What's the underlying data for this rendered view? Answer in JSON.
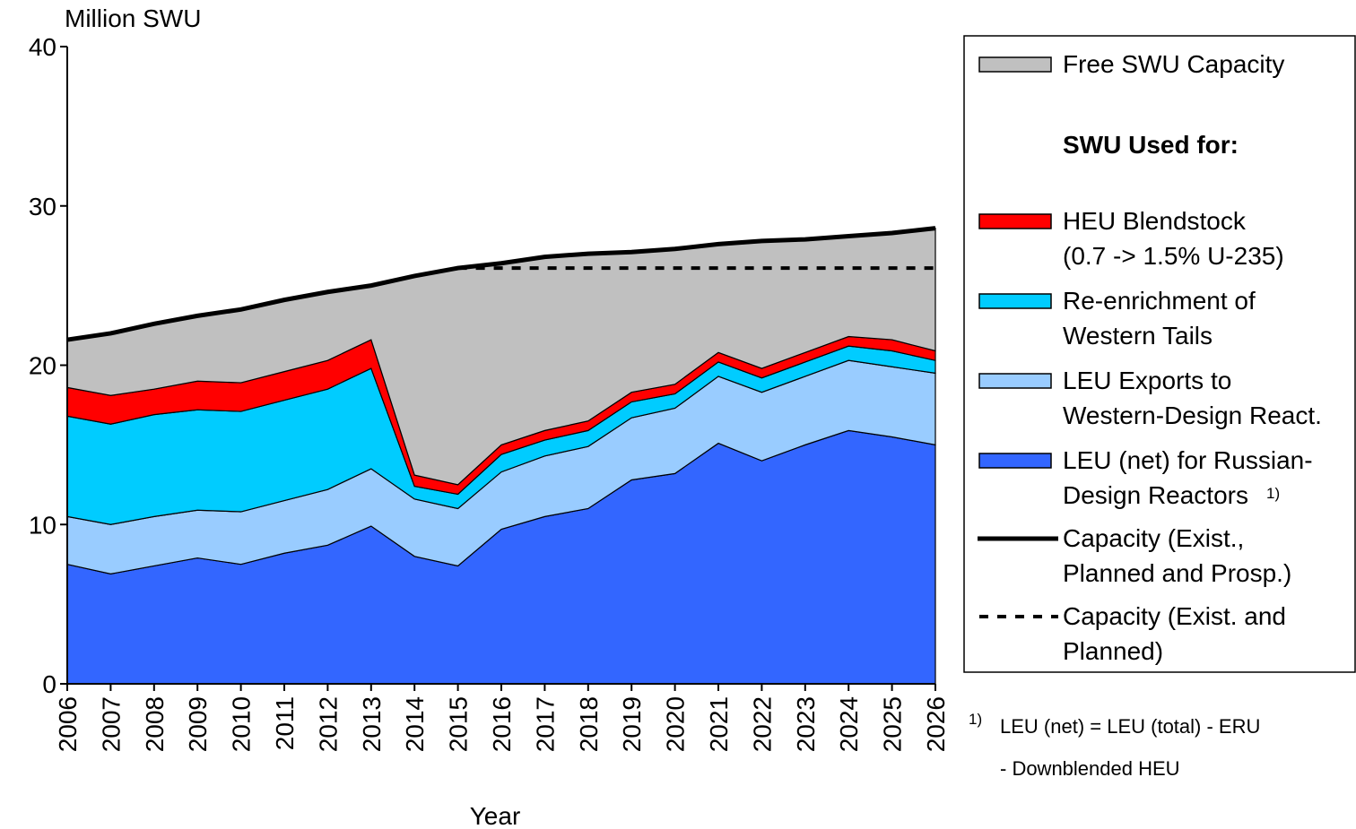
{
  "chart_data": {
    "type": "stacked_area",
    "y_axis_label": "Million SWU",
    "x_axis_label": "Year",
    "categories": [
      "2006",
      "2007",
      "2008",
      "2009",
      "2010",
      "2011",
      "2012",
      "2013",
      "2014",
      "2015",
      "2016",
      "2017",
      "2018",
      "2019",
      "2020",
      "2021",
      "2022",
      "2023",
      "2024",
      "2025",
      "2026"
    ],
    "ylim": [
      0,
      40
    ],
    "yticks": [
      0,
      10,
      20,
      30,
      40
    ],
    "grid": false,
    "series": [
      {
        "name": "LEU (net) for Russian-\nDesign Reactors",
        "color": "#3366ff",
        "values": [
          7.5,
          6.9,
          7.4,
          7.9,
          7.5,
          8.2,
          8.7,
          9.9,
          8.0,
          7.4,
          9.7,
          10.5,
          11.0,
          12.8,
          13.2,
          15.1,
          14.0,
          15.0,
          15.9,
          15.5,
          15.0
        ]
      },
      {
        "name": "LEU Exports to\nWestern-Design React.",
        "color": "#99ccff",
        "values": [
          3.0,
          3.1,
          3.1,
          3.0,
          3.3,
          3.3,
          3.5,
          3.6,
          3.6,
          3.6,
          3.6,
          3.8,
          3.9,
          3.9,
          4.1,
          4.2,
          4.3,
          4.3,
          4.4,
          4.4,
          4.5
        ]
      },
      {
        "name": "Re-enrichment of\nWestern Tails",
        "color": "#00ccff",
        "values": [
          6.3,
          6.3,
          6.4,
          6.3,
          6.3,
          6.3,
          6.3,
          6.3,
          0.8,
          0.9,
          1.1,
          1.0,
          1.0,
          1.0,
          0.9,
          0.9,
          0.9,
          0.9,
          0.9,
          1.0,
          0.8
        ]
      },
      {
        "name": "HEU Blendstock\n(0.7 -> 1.5% U-235)",
        "color": "#ff0000",
        "values": [
          1.8,
          1.8,
          1.6,
          1.8,
          1.8,
          1.8,
          1.8,
          1.8,
          0.7,
          0.6,
          0.6,
          0.6,
          0.6,
          0.6,
          0.6,
          0.6,
          0.6,
          0.6,
          0.6,
          0.7,
          0.6
        ]
      },
      {
        "name": "Free SWU Capacity",
        "color": "#c0c0c0",
        "values": [
          3.0,
          3.9,
          4.1,
          4.1,
          4.6,
          4.5,
          4.3,
          3.4,
          12.5,
          13.6,
          11.4,
          10.9,
          10.5,
          8.8,
          8.5,
          6.8,
          8.0,
          7.1,
          6.3,
          6.7,
          7.7
        ]
      }
    ],
    "lines": [
      {
        "name": "Capacity (Exist.,\nPlanned and Prosp.)",
        "color": "#000000",
        "style": "solid",
        "values": [
          21.6,
          22.0,
          22.6,
          23.1,
          23.5,
          24.1,
          24.6,
          25.0,
          25.6,
          26.1,
          26.4,
          26.8,
          27.0,
          27.1,
          27.3,
          27.6,
          27.8,
          27.9,
          28.1,
          28.3,
          28.6
        ]
      },
      {
        "name": "Capacity (Exist. and\nPlanned)",
        "color": "#000000",
        "style": "dashed",
        "values": [
          null,
          null,
          null,
          null,
          null,
          null,
          null,
          null,
          null,
          26.1,
          26.1,
          26.1,
          26.1,
          26.1,
          26.1,
          26.1,
          26.1,
          26.1,
          26.1,
          26.1,
          26.1
        ]
      }
    ],
    "legend_heading": "SWU Used for:",
    "footnote_marker": "1)",
    "footnote_lines": [
      "LEU (net) = LEU (total) - ERU",
      "- Downblended HEU"
    ]
  }
}
